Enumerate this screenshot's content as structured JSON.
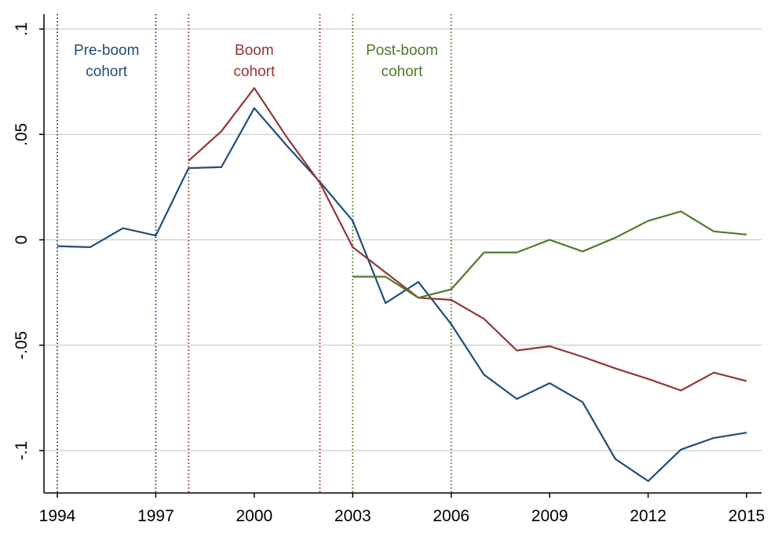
{
  "chart_data": {
    "type": "line",
    "title": "",
    "xlabel": "",
    "ylabel": "",
    "xlim": [
      1994,
      2015
    ],
    "ylim": [
      -0.12,
      0.1
    ],
    "grid": true,
    "x_ticks": [
      1994,
      1997,
      2000,
      2003,
      2006,
      2009,
      2012,
      2015
    ],
    "y_ticks": [
      {
        "value": 0.1,
        "label": ".1"
      },
      {
        "value": 0.05,
        "label": ".05"
      },
      {
        "value": 0,
        "label": "0"
      },
      {
        "value": -0.05,
        "label": "-.05"
      },
      {
        "value": -0.1,
        "label": "-.1"
      }
    ],
    "series": [
      {
        "color": "#1f4e79",
        "x": [
          1994,
          1995,
          1996,
          1997,
          1998,
          1999,
          2000,
          2001,
          2002,
          2003,
          2004,
          2005,
          2006,
          2007,
          2008,
          2009,
          2010,
          2011,
          2012,
          2013,
          2014,
          2015
        ],
        "y": [
          -0.003,
          -0.0035,
          0.0055,
          0.002,
          0.034,
          0.0345,
          0.0625,
          0.0445,
          0.0275,
          0.009,
          -0.03,
          -0.02,
          -0.04,
          -0.064,
          -0.0755,
          -0.068,
          -0.077,
          -0.104,
          -0.1145,
          -0.0995,
          -0.094,
          -0.0915
        ]
      },
      {
        "color": "#943634",
        "x": [
          1998,
          1999,
          2000,
          2001,
          2002,
          2003,
          2004,
          2005,
          2006,
          2007,
          2008,
          2009,
          2010,
          2011,
          2012,
          2013,
          2014,
          2015
        ],
        "y": [
          0.0375,
          0.0515,
          0.072,
          0.0485,
          0.027,
          -0.0035,
          -0.0155,
          -0.0275,
          -0.0285,
          -0.0375,
          -0.0525,
          -0.0505,
          -0.0555,
          -0.061,
          -0.066,
          -0.0715,
          -0.063,
          -0.067
        ]
      },
      {
        "color": "#4f7a28",
        "x": [
          2003,
          2004,
          2005,
          2006,
          2007,
          2008,
          2009,
          2010,
          2011,
          2012,
          2013,
          2014,
          2015
        ],
        "y": [
          -0.0175,
          -0.0175,
          -0.0275,
          -0.0235,
          -0.006,
          -0.006,
          0.0,
          -0.0055,
          0.001,
          0.009,
          0.0135,
          0.004,
          0.0025
        ]
      }
    ],
    "vlines": [
      {
        "x": 1994,
        "color": "#1f4e79"
      },
      {
        "x": 1997,
        "color": "#1f4e79"
      },
      {
        "x": 1998,
        "color": "#943634"
      },
      {
        "x": 2002,
        "color": "#943634"
      },
      {
        "x": 2003,
        "color": "#4f7a28"
      },
      {
        "x": 2006,
        "color": "#4f7a28"
      }
    ],
    "annotations": [
      {
        "lines": [
          "Pre-boom",
          "cohort"
        ],
        "x": 1995.5,
        "color": "#1f4e79"
      },
      {
        "lines": [
          "Boom",
          "cohort"
        ],
        "x": 2000,
        "color": "#943634"
      },
      {
        "lines": [
          "Post-boom",
          "cohort"
        ],
        "x": 2004.5,
        "color": "#4f7a28"
      }
    ]
  }
}
